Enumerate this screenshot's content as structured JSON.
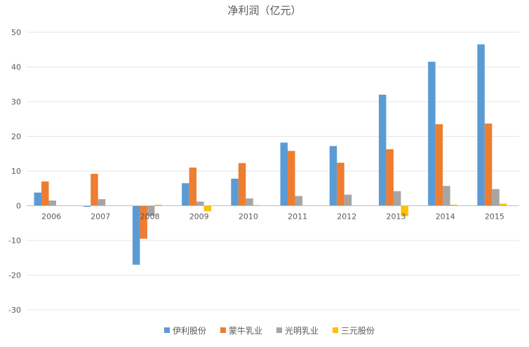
{
  "chart_data": {
    "type": "bar",
    "title": "净利润（亿元）",
    "xlabel": "",
    "ylabel": "",
    "categories": [
      "2006",
      "2007",
      "2008",
      "2009",
      "2010",
      "2011",
      "2012",
      "2013",
      "2014",
      "2015"
    ],
    "series": [
      {
        "name": "伊利股份",
        "color": "#5b9bd5",
        "values": [
          3.8,
          -0.3,
          -17.0,
          6.5,
          7.8,
          18.2,
          17.2,
          32.0,
          41.5,
          46.5
        ]
      },
      {
        "name": "蒙牛乳业",
        "color": "#ed7d31",
        "values": [
          7.0,
          9.2,
          -9.5,
          11.0,
          12.3,
          15.8,
          12.4,
          16.3,
          23.5,
          23.7
        ]
      },
      {
        "name": "光明乳业",
        "color": "#a5a5a5",
        "values": [
          1.5,
          1.9,
          -2.9,
          1.2,
          2.1,
          2.8,
          3.2,
          4.2,
          5.7,
          4.8
        ]
      },
      {
        "name": "三元股份",
        "color": "#ffc000",
        "values": [
          0.0,
          0.0,
          0.3,
          -1.6,
          0.2,
          0.0,
          0.0,
          -3.0,
          0.3,
          0.6
        ]
      }
    ],
    "ylim": [
      -30,
      50
    ],
    "ytick_step": 10,
    "grid": true,
    "legend_position": "bottom"
  }
}
